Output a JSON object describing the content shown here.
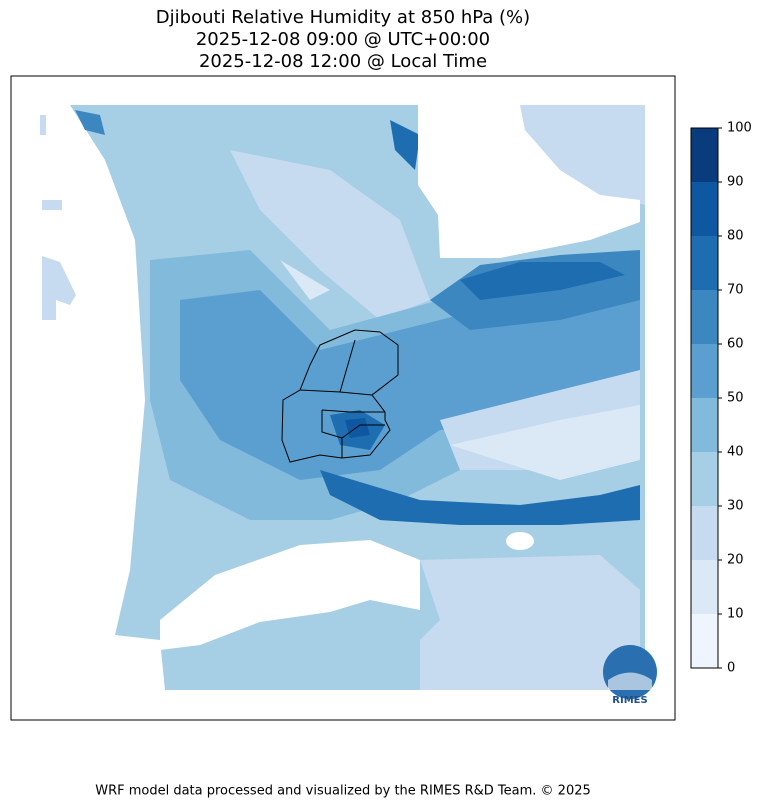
{
  "title": [
    "Djibouti Relative Humidity at 850 hPa (%)",
    "2025-12-08 09:00 @ UTC+00:00",
    "2025-12-08 12:00 @ Local Time"
  ],
  "colorbar": {
    "lim": [
      0,
      100
    ],
    "ticks": [
      0,
      10,
      20,
      30,
      40,
      50,
      60,
      70,
      80,
      90,
      100
    ],
    "colors": [
      "#eef5fc",
      "#dbe9f6",
      "#c6dbef",
      "#a6cee4",
      "#82badb",
      "#5a9fcf",
      "#3c87c0",
      "#1f6db1",
      "#0e58a2",
      "#083c7d"
    ]
  },
  "logo_text": "RIMES",
  "footer": "WRF model data processed and visualized by the RIMES R&D Team. © 2025"
}
